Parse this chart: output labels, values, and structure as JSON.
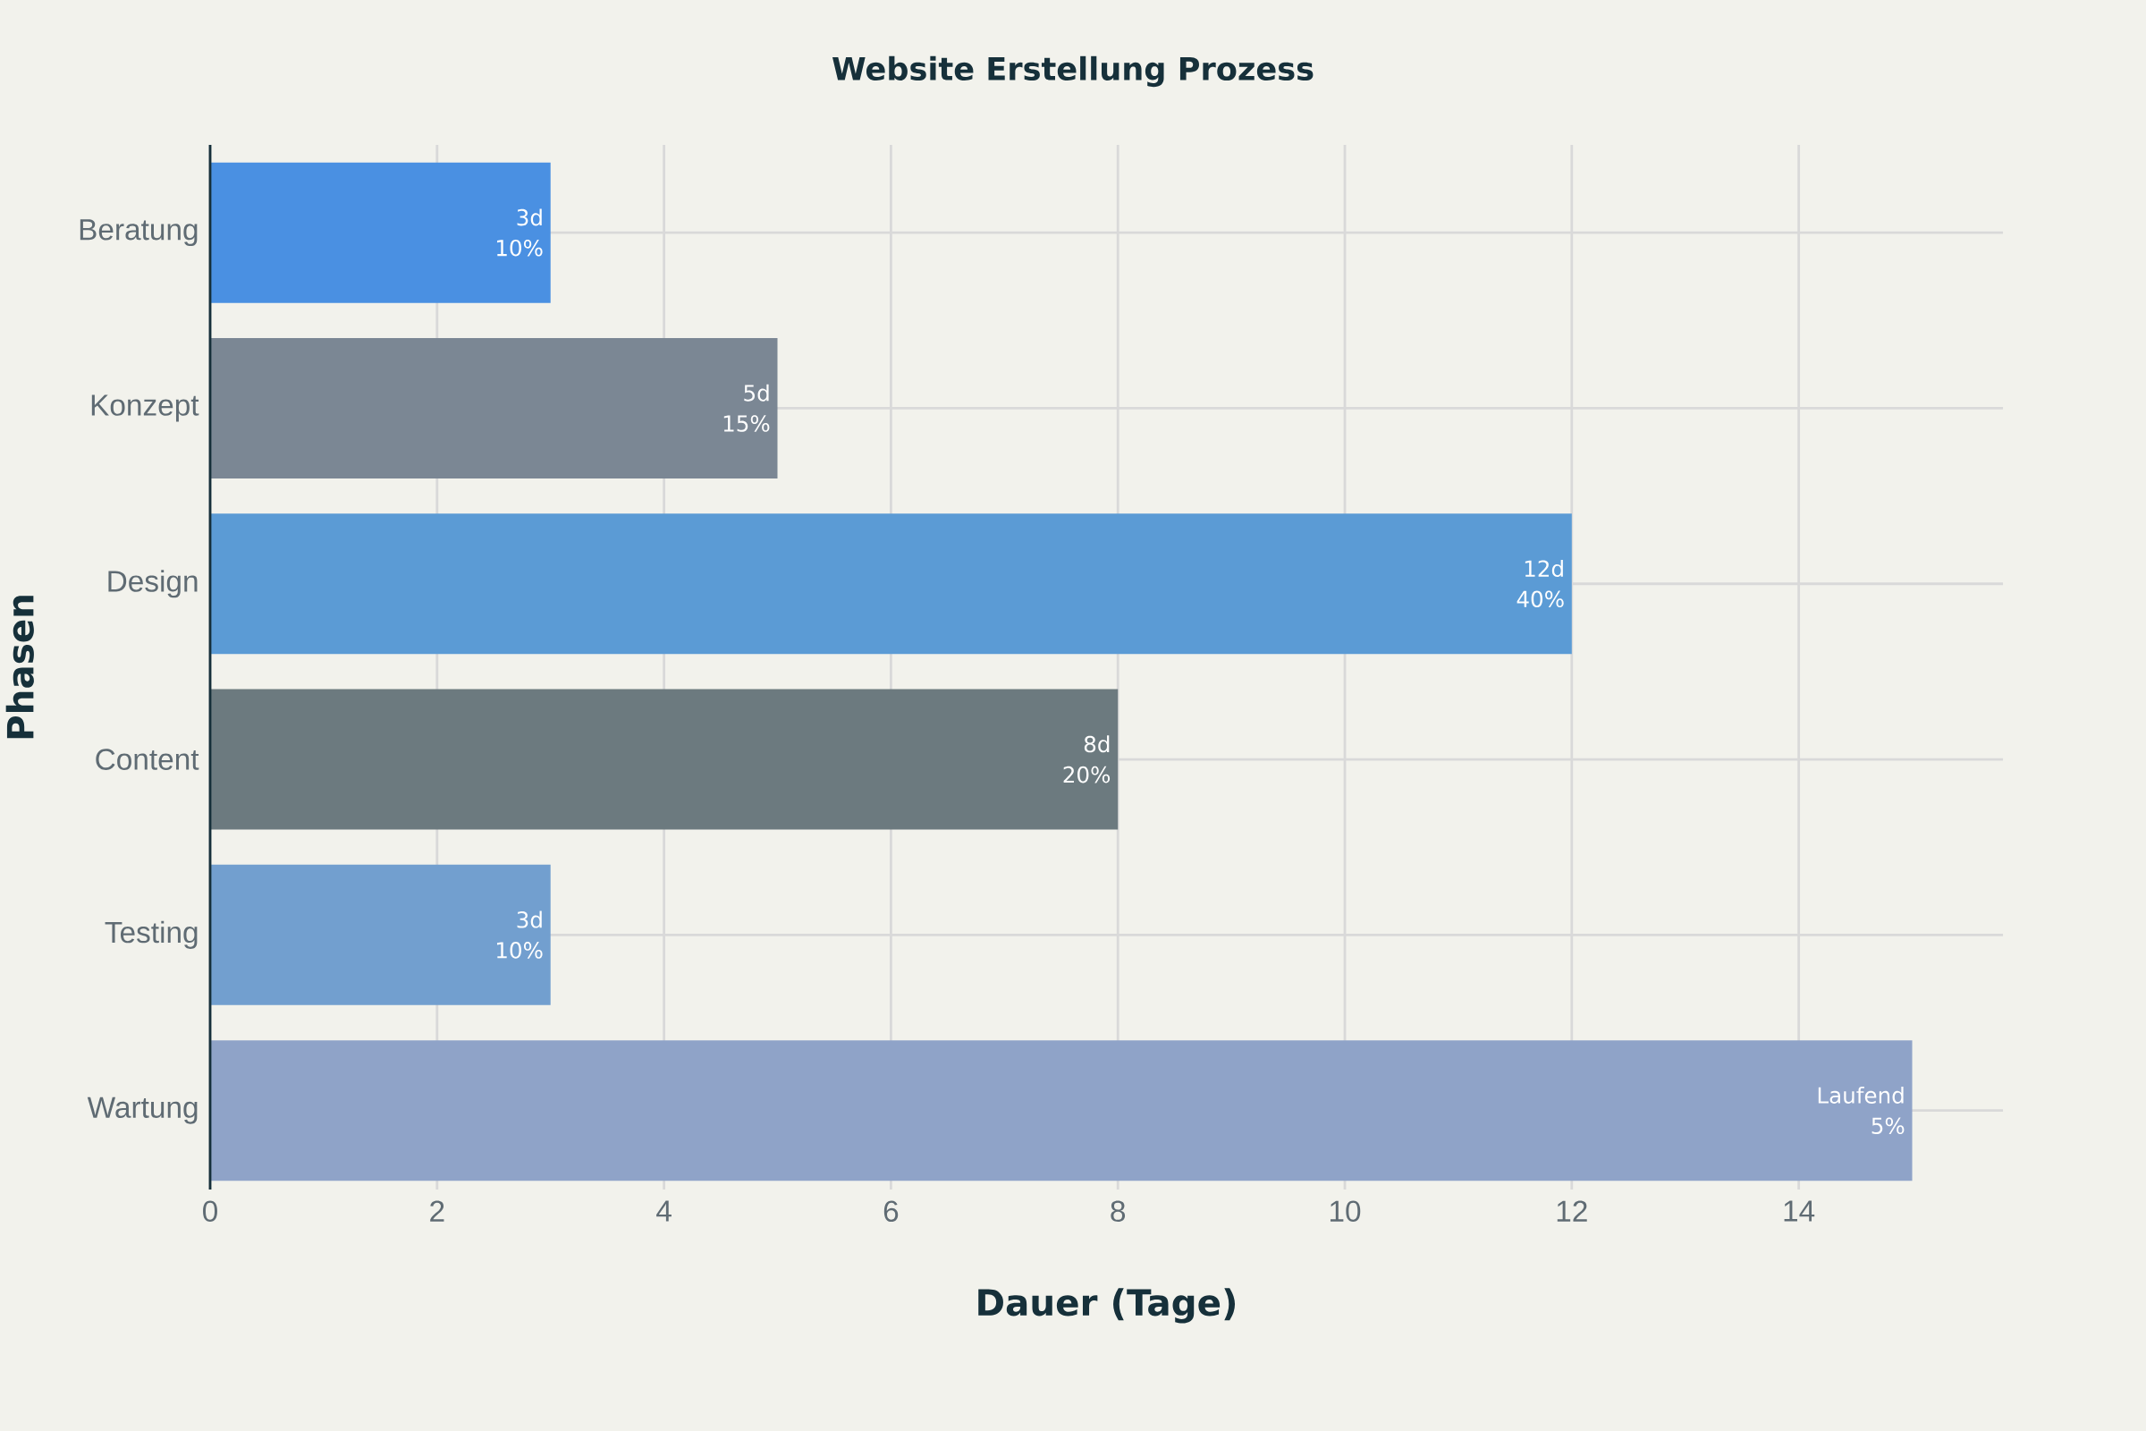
{
  "chart_data": {
    "type": "bar",
    "orientation": "horizontal",
    "title": "Website Erstellung Prozess",
    "xlabel": "Dauer (Tage)",
    "ylabel": "Phasen",
    "categories": [
      "Beratung",
      "Konzept",
      "Design",
      "Content",
      "Testing",
      "Wartung"
    ],
    "values": [
      3,
      5,
      12,
      8,
      3,
      15
    ],
    "colors": [
      "#4a90e2",
      "#7b8794",
      "#5b9bd5",
      "#6c7a7f",
      "#729fcf",
      "#8fa3c8"
    ],
    "value_labels": [
      "3d",
      "5d",
      "12d",
      "8d",
      "3d",
      "Laufend"
    ],
    "annotations": [
      {
        "text": "10%",
        "x": 3,
        "y": "Beratung"
      },
      {
        "text": "15%",
        "x": 5,
        "y": "Konzept"
      },
      {
        "text": "40%",
        "x": 12,
        "y": "Design"
      },
      {
        "text": "20%",
        "x": 8,
        "y": "Content"
      },
      {
        "text": "10%",
        "x": 3,
        "y": "Testing"
      },
      {
        "text": "5%",
        "x": 15,
        "y": "Wartung"
      }
    ],
    "xlim": [
      0,
      15.8
    ],
    "xticks": [
      0,
      2,
      4,
      6,
      8,
      10,
      12,
      14
    ],
    "grid": true
  }
}
